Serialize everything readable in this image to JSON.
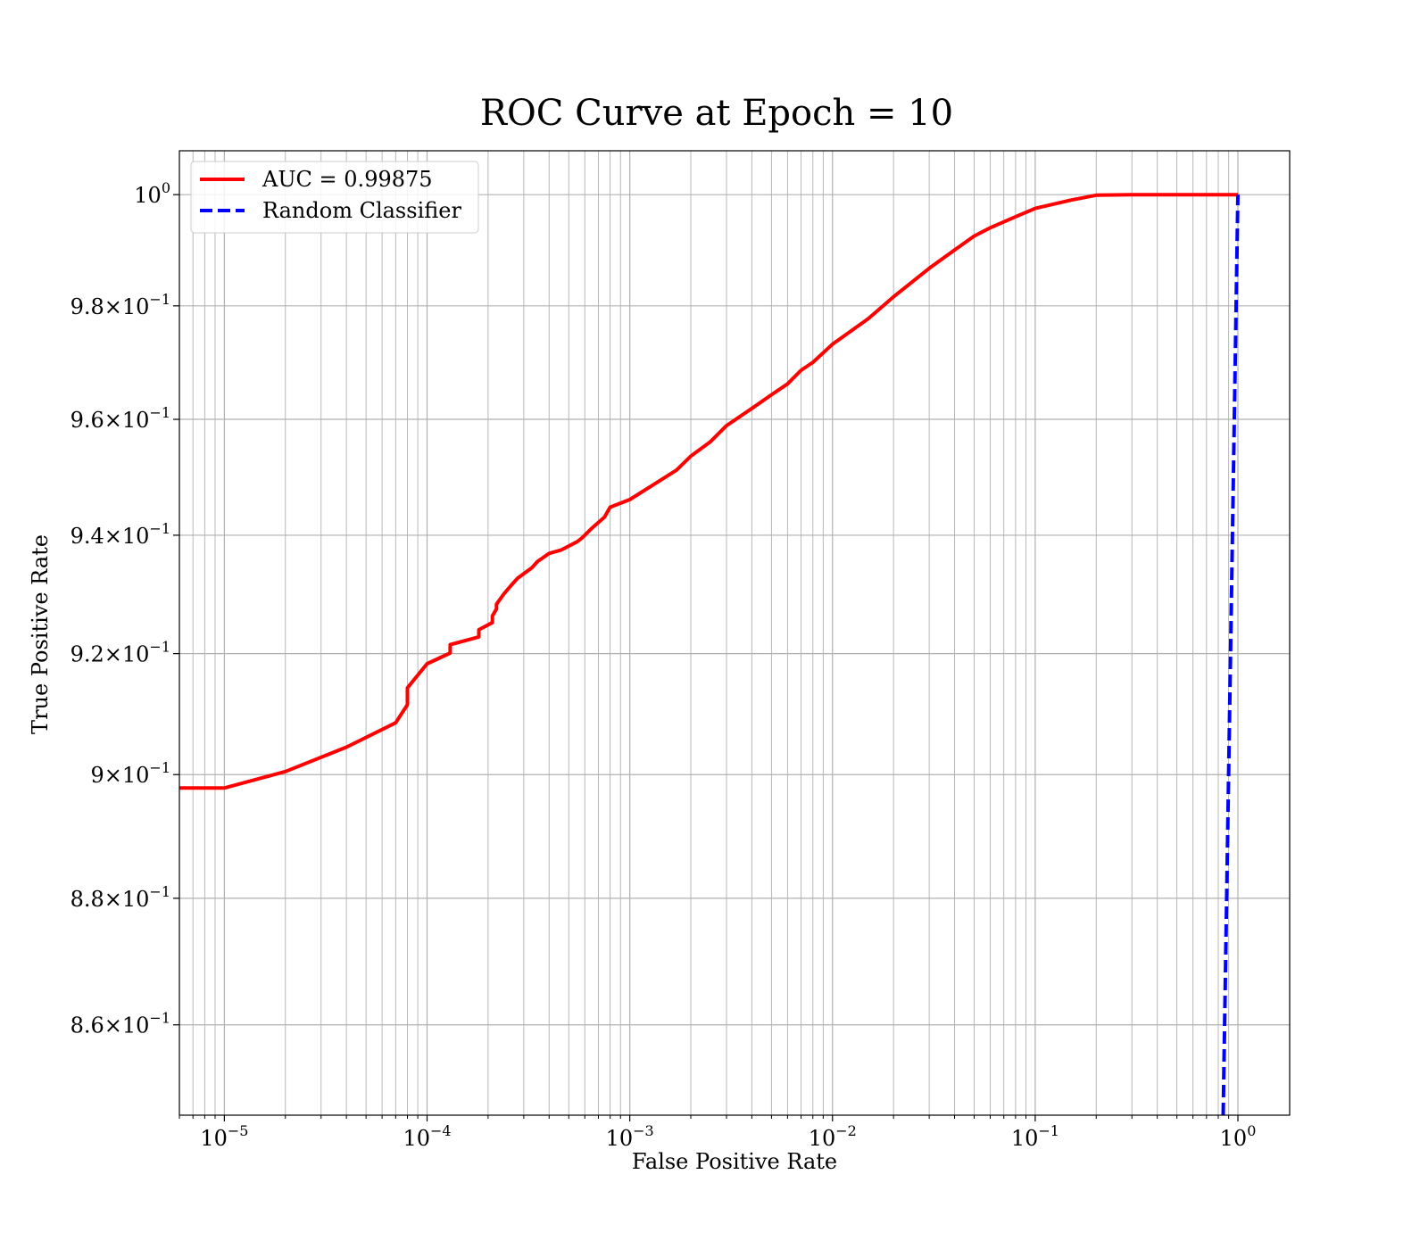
{
  "chart_data": {
    "type": "line",
    "title": "ROC Curve at Epoch = 10",
    "xlabel": "False Positive Rate",
    "ylabel": "True Positive Rate",
    "xscale": "log",
    "yscale": "log",
    "xlim": [
      6e-06,
      1.8
    ],
    "ylim": [
      0.846,
      1.008
    ],
    "grid": "major and minor",
    "legend_position": "top-left",
    "x_ticks": [
      {
        "mantissa": "",
        "base": "10",
        "exp": "−5",
        "value": 1e-05
      },
      {
        "mantissa": "",
        "base": "10",
        "exp": "−4",
        "value": 0.0001
      },
      {
        "mantissa": "",
        "base": "10",
        "exp": "−3",
        "value": 0.001
      },
      {
        "mantissa": "",
        "base": "10",
        "exp": "−2",
        "value": 0.01
      },
      {
        "mantissa": "",
        "base": "10",
        "exp": "−1",
        "value": 0.1
      },
      {
        "mantissa": "",
        "base": "10",
        "exp": "0",
        "value": 1
      }
    ],
    "y_ticks": [
      {
        "mantissa": "",
        "base": "10",
        "exp": "0",
        "value": 1.0
      },
      {
        "mantissa": "9.8×",
        "base": "10",
        "exp": "−1",
        "value": 0.98
      },
      {
        "mantissa": "9.6×",
        "base": "10",
        "exp": "−1",
        "value": 0.96
      },
      {
        "mantissa": "9.4×",
        "base": "10",
        "exp": "−1",
        "value": 0.94
      },
      {
        "mantissa": "9.2×",
        "base": "10",
        "exp": "−1",
        "value": 0.92
      },
      {
        "mantissa": "9×",
        "base": "10",
        "exp": "−1",
        "value": 0.9
      },
      {
        "mantissa": "8.8×",
        "base": "10",
        "exp": "−1",
        "value": 0.88
      },
      {
        "mantissa": "8.6×",
        "base": "10",
        "exp": "−1",
        "value": 0.86
      }
    ],
    "series": [
      {
        "name": "AUC = 0.99875",
        "color": "#ff0000",
        "style": "solid",
        "x": [
          6e-06,
          1e-05,
          2e-05,
          4e-05,
          7e-05,
          8e-05,
          8e-05,
          0.0001,
          0.00013,
          0.00013,
          0.00018,
          0.00018,
          0.00021,
          0.00021,
          0.00022,
          0.00022,
          0.00024,
          0.00026,
          0.00028,
          0.00033,
          0.00035,
          0.0004,
          0.00046,
          0.00055,
          0.00058,
          0.00065,
          0.00075,
          0.0008,
          0.001,
          0.0013,
          0.0017,
          0.002,
          0.0025,
          0.003,
          0.004,
          0.005,
          0.006,
          0.007,
          0.008,
          0.01,
          0.015,
          0.02,
          0.03,
          0.04,
          0.05,
          0.06,
          0.08,
          0.1,
          0.15,
          0.2,
          0.3,
          1.0
        ],
        "y": [
          0.8978,
          0.8978,
          0.9005,
          0.9045,
          0.9085,
          0.9115,
          0.9143,
          0.9183,
          0.9201,
          0.9215,
          0.9228,
          0.924,
          0.9252,
          0.9263,
          0.9275,
          0.9283,
          0.9301,
          0.9315,
          0.9327,
          0.9345,
          0.9355,
          0.9369,
          0.9375,
          0.9389,
          0.9395,
          0.9412,
          0.9431,
          0.9448,
          0.9461,
          0.9486,
          0.9512,
          0.9536,
          0.9561,
          0.9589,
          0.9619,
          0.9643,
          0.9662,
          0.9686,
          0.97,
          0.9732,
          0.9777,
          0.9816,
          0.9867,
          0.99,
          0.9925,
          0.994,
          0.996,
          0.9975,
          0.999,
          0.9999,
          1.0,
          1.0
        ]
      },
      {
        "name": "Random Classifier",
        "color": "#0000ff",
        "style": "dashed",
        "x": [
          0.846,
          1.0
        ],
        "y": [
          0.846,
          1.0
        ]
      }
    ]
  }
}
